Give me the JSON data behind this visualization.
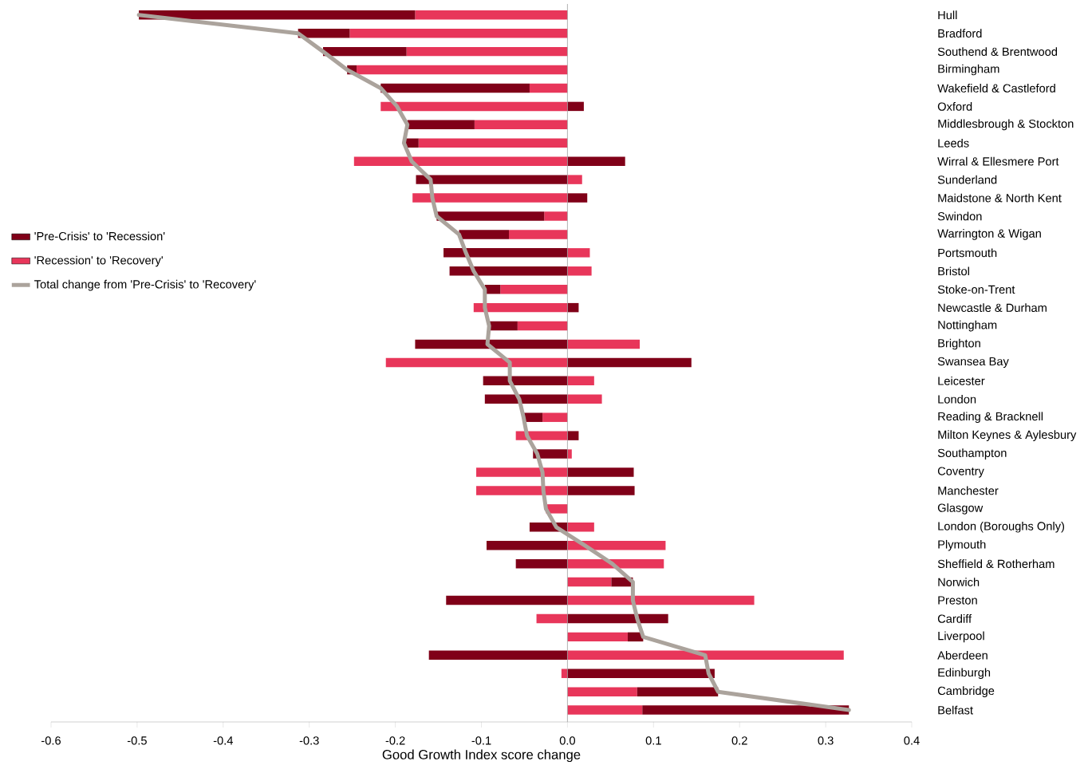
{
  "chart_data": {
    "type": "bar",
    "orientation": "horizontal",
    "stacked": true,
    "xlabel": "Good Growth Index score change",
    "categories": [
      "Hull",
      "Bradford",
      "Southend & Brentwood",
      "Birmingham",
      "Wakefield & Castleford",
      "Oxford",
      "Middlesbrough & Stockton",
      "Leeds",
      "Wirral & Ellesmere Port",
      "Sunderland",
      "Maidstone & North Kent",
      "Swindon",
      "Warrington & Wigan",
      "Portsmouth",
      "Bristol",
      "Stoke-on-Trent",
      "Newcastle & Durham",
      "Nottingham",
      "Brighton",
      "Swansea Bay",
      "Leicester",
      "London",
      "Reading & Bracknell",
      "Milton Keynes & Aylesbury",
      "Southampton",
      "Coventry",
      "Manchester",
      "Glasgow",
      "London (Boroughs Only)",
      "Plymouth",
      "Sheffield & Rotherham",
      "Norwich",
      "Preston",
      "Cardiff",
      "Liverpool",
      "Aberdeen",
      "Edinburgh",
      "Cambridge",
      "Belfast"
    ],
    "series": [
      {
        "name": "'Recession' to 'Recovery'",
        "color": "#e8365a",
        "values": [
          -0.177,
          -0.253,
          -0.187,
          -0.245,
          -0.044,
          -0.217,
          -0.108,
          -0.173,
          -0.248,
          0.017,
          -0.18,
          -0.027,
          -0.068,
          0.026,
          0.028,
          -0.078,
          -0.109,
          -0.058,
          0.084,
          -0.211,
          0.031,
          0.04,
          -0.029,
          -0.06,
          0.005,
          -0.106,
          -0.106,
          -0.025,
          0.031,
          0.114,
          0.112,
          0.051,
          0.217,
          -0.036,
          0.07,
          0.321,
          -0.007,
          0.081,
          0.087
        ]
      },
      {
        "name": "'Pre-Crisis' to 'Recession'",
        "color": "#800018",
        "values": [
          -0.321,
          -0.06,
          -0.097,
          -0.011,
          -0.173,
          0.019,
          -0.078,
          -0.017,
          0.067,
          -0.176,
          0.023,
          -0.125,
          -0.058,
          -0.144,
          -0.137,
          -0.018,
          0.013,
          -0.033,
          -0.177,
          0.144,
          -0.098,
          -0.096,
          -0.022,
          0.013,
          -0.04,
          0.077,
          0.078,
          null,
          -0.044,
          -0.094,
          -0.06,
          0.025,
          -0.141,
          0.117,
          0.018,
          -0.161,
          0.171,
          0.094,
          0.24
        ]
      },
      {
        "name": "Total change from 'Pre-Crisis' to 'Recovery'",
        "type": "line",
        "color": "#aba39c",
        "values": [
          -0.498,
          -0.313,
          -0.284,
          -0.256,
          -0.217,
          -0.198,
          -0.186,
          -0.19,
          -0.181,
          -0.159,
          -0.157,
          -0.152,
          -0.126,
          -0.118,
          -0.109,
          -0.096,
          -0.096,
          -0.091,
          -0.093,
          -0.067,
          -0.067,
          -0.056,
          -0.051,
          -0.047,
          -0.035,
          -0.029,
          -0.028,
          -0.025,
          -0.013,
          0.02,
          0.052,
          0.076,
          0.076,
          0.081,
          0.088,
          0.16,
          0.164,
          0.175,
          0.327
        ]
      }
    ],
    "xlim": [
      -0.6,
      0.4
    ],
    "xticks": [
      {
        "value": -0.6,
        "label": "-0.6"
      },
      {
        "value": -0.5,
        "label": "-0.5"
      },
      {
        "value": -0.4,
        "label": "-0.4"
      },
      {
        "value": -0.3,
        "label": "-0.3"
      },
      {
        "value": -0.2,
        "label": "-0.2"
      },
      {
        "value": -0.1,
        "label": "-0.1"
      },
      {
        "value": 0,
        "label": "0.0"
      },
      {
        "value": 0.1,
        "label": "0.1"
      },
      {
        "value": 0.2,
        "label": "0.2"
      },
      {
        "value": 0.3,
        "label": "0.3"
      },
      {
        "value": 0.4,
        "label": "0.4"
      }
    ],
    "ref_lines": [
      {
        "axis": "x",
        "value": 0,
        "color": "#a0a0a0"
      }
    ],
    "legend": "left"
  }
}
